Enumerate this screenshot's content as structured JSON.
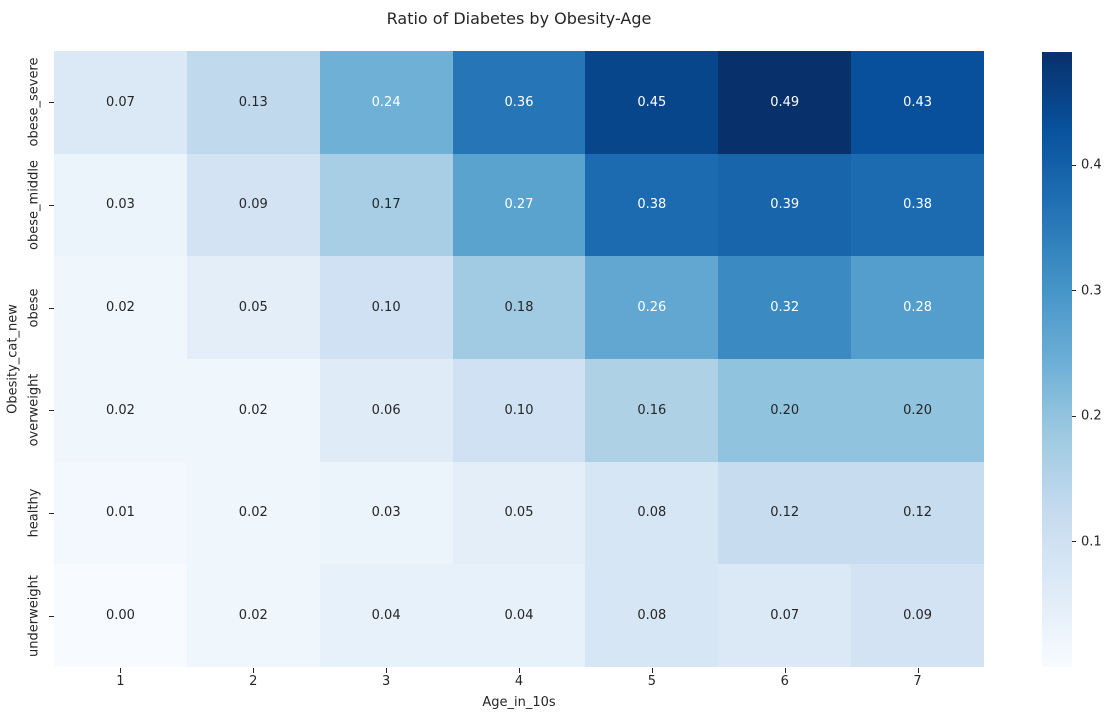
{
  "chart_data": {
    "type": "heatmap",
    "title": "Ratio of Diabetes by Obesity-Age",
    "xlabel": "Age_in_10s",
    "ylabel": "Obesity_cat_new",
    "x_categories": [
      "1",
      "2",
      "3",
      "4",
      "5",
      "6",
      "7"
    ],
    "y_categories": [
      "obese_severe",
      "obese_middle",
      "obese",
      "overweight",
      "healthy",
      "underweight"
    ],
    "series": [
      {
        "name": "obese_severe",
        "values": [
          0.07,
          0.13,
          0.24,
          0.36,
          0.45,
          0.49,
          0.43
        ]
      },
      {
        "name": "obese_middle",
        "values": [
          0.03,
          0.09,
          0.17,
          0.27,
          0.38,
          0.39,
          0.38
        ]
      },
      {
        "name": "obese",
        "values": [
          0.02,
          0.05,
          0.1,
          0.18,
          0.26,
          0.32,
          0.28
        ]
      },
      {
        "name": "overweight",
        "values": [
          0.02,
          0.02,
          0.06,
          0.1,
          0.16,
          0.2,
          0.2
        ]
      },
      {
        "name": "healthy",
        "values": [
          0.01,
          0.02,
          0.03,
          0.05,
          0.08,
          0.12,
          0.12
        ]
      },
      {
        "name": "underweight",
        "values": [
          0.0,
          0.02,
          0.04,
          0.04,
          0.08,
          0.07,
          0.09
        ]
      }
    ],
    "vmin": 0.0,
    "vmax": 0.49,
    "annotation_decimals": 2,
    "colormap": "Blues",
    "colormap_hex": [
      "#f7fbff",
      "#deebf7",
      "#c6dbef",
      "#9ecae1",
      "#6baed6",
      "#4292c6",
      "#2171b5",
      "#08519c",
      "#08306b"
    ],
    "colorbar_ticks": [
      0.4,
      0.3,
      0.2,
      0.1
    ],
    "legend_position": "right-colorbar",
    "grid": false,
    "colors": {
      "background": "#ffffff",
      "text": "#262626",
      "annotation_dark": "#262626",
      "annotation_light": "#ffffff"
    }
  }
}
